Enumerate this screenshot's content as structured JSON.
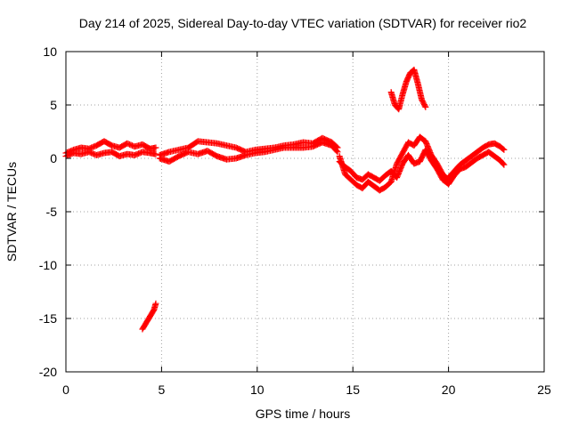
{
  "chart_data": {
    "type": "scatter",
    "title": "Day 214 of 2025, Sidereal Day-to-day VTEC variation (SDTVAR) for receiver rio2",
    "xlabel": "GPS time / hours",
    "ylabel": "SDTVAR / TECUs",
    "xlim": [
      0,
      25
    ],
    "ylim": [
      -20,
      10
    ],
    "xticks": [
      "0",
      "5",
      "10",
      "15",
      "20",
      "25"
    ],
    "yticks": [
      "10",
      "5",
      "0",
      "-5",
      "-10",
      "-15",
      "-20"
    ],
    "grid": true,
    "marker": "+",
    "series": [
      {
        "name": "SDTVAR",
        "color": "#ff0000",
        "segments": [
          {
            "x": [
              0.0,
              0.4,
              0.8,
              1.2,
              1.6,
              2.0,
              2.4,
              2.8,
              3.2,
              3.6,
              4.0,
              4.4,
              4.7
            ],
            "y": [
              0.5,
              0.8,
              1.0,
              0.9,
              1.2,
              1.6,
              1.2,
              1.0,
              1.4,
              1.1,
              1.3,
              0.9,
              1.0
            ]
          },
          {
            "x": [
              0.0,
              0.4,
              0.8,
              1.2,
              1.6,
              2.0,
              2.4,
              2.8,
              3.2,
              3.6,
              4.0,
              4.4,
              4.7
            ],
            "y": [
              0.2,
              0.5,
              0.4,
              0.6,
              0.3,
              0.5,
              0.6,
              0.2,
              0.4,
              0.3,
              0.6,
              0.5,
              0.4
            ]
          },
          {
            "x": [
              4.0,
              4.2,
              4.4,
              4.6,
              4.7
            ],
            "y": [
              -16.0,
              -15.4,
              -14.8,
              -14.2,
              -13.6
            ]
          },
          {
            "x": [
              4.9,
              5.4,
              5.9,
              6.4,
              6.9,
              7.4,
              7.9,
              8.4,
              8.9,
              9.4,
              9.9,
              10.4,
              10.9,
              11.4,
              11.9,
              12.4,
              12.9,
              13.4,
              13.9,
              14.2
            ],
            "y": [
              0.3,
              0.6,
              0.8,
              1.0,
              1.6,
              1.5,
              1.4,
              1.2,
              1.0,
              0.6,
              0.8,
              0.9,
              1.0,
              1.2,
              1.3,
              1.5,
              1.4,
              1.9,
              1.5,
              1.0
            ]
          },
          {
            "x": [
              4.9,
              5.4,
              5.9,
              6.4,
              6.9,
              7.4,
              7.9,
              8.4,
              8.9,
              9.4,
              9.9,
              10.4,
              10.9,
              11.4,
              11.9,
              12.4,
              12.9,
              13.4,
              13.9,
              14.2
            ],
            "y": [
              0.0,
              -0.3,
              0.2,
              0.6,
              0.4,
              0.7,
              0.2,
              -0.1,
              0.0,
              0.3,
              0.5,
              0.6,
              0.8,
              1.0,
              1.0,
              1.0,
              1.1,
              1.5,
              1.2,
              0.6
            ]
          },
          {
            "x": [
              14.3,
              14.6,
              14.9,
              15.2,
              15.5,
              15.8,
              16.1,
              16.4,
              16.7,
              17.0,
              17.3,
              17.6,
              17.9,
              18.2,
              18.5,
              18.8,
              19.1,
              19.4,
              19.7,
              20.0
            ],
            "y": [
              0.2,
              -1.5,
              -2.0,
              -2.5,
              -2.8,
              -2.2,
              -2.6,
              -3.0,
              -2.7,
              -2.2,
              -0.5,
              0.5,
              1.5,
              1.2,
              2.0,
              1.6,
              0.3,
              -0.5,
              -1.5,
              -2.0
            ]
          },
          {
            "x": [
              14.3,
              14.6,
              14.9,
              15.2,
              15.5,
              15.8,
              16.1,
              16.4,
              16.7,
              17.0,
              17.3,
              17.6,
              17.9,
              18.2,
              18.5,
              18.8,
              19.1,
              19.4,
              19.7,
              20.0
            ],
            "y": [
              -0.3,
              -0.8,
              -1.2,
              -1.8,
              -2.0,
              -1.5,
              -1.8,
              -2.1,
              -1.6,
              -1.2,
              -1.8,
              -0.5,
              0.3,
              -0.5,
              -0.3,
              0.8,
              -0.2,
              -1.0,
              -2.0,
              -2.4
            ]
          },
          {
            "x": [
              20.0,
              20.3,
              20.6,
              20.9,
              21.2,
              21.5,
              21.8,
              22.1,
              22.4,
              22.7,
              22.9
            ],
            "y": [
              -1.8,
              -1.2,
              -0.6,
              -0.2,
              0.2,
              0.6,
              1.0,
              1.3,
              1.4,
              1.1,
              0.8
            ]
          },
          {
            "x": [
              20.0,
              20.3,
              20.6,
              20.9,
              21.2,
              21.5,
              21.8,
              22.1,
              22.4,
              22.7,
              22.9
            ],
            "y": [
              -2.4,
              -1.6,
              -1.0,
              -0.8,
              -0.4,
              0.0,
              0.3,
              0.6,
              0.2,
              -0.2,
              -0.6
            ]
          },
          {
            "x": [
              17.0,
              17.2,
              17.4,
              17.6,
              17.8,
              18.0,
              18.2,
              18.4,
              18.6,
              18.8
            ],
            "y": [
              6.2,
              5.0,
              4.6,
              6.0,
              7.2,
              8.0,
              8.3,
              7.0,
              5.5,
              4.8
            ]
          }
        ]
      }
    ]
  }
}
